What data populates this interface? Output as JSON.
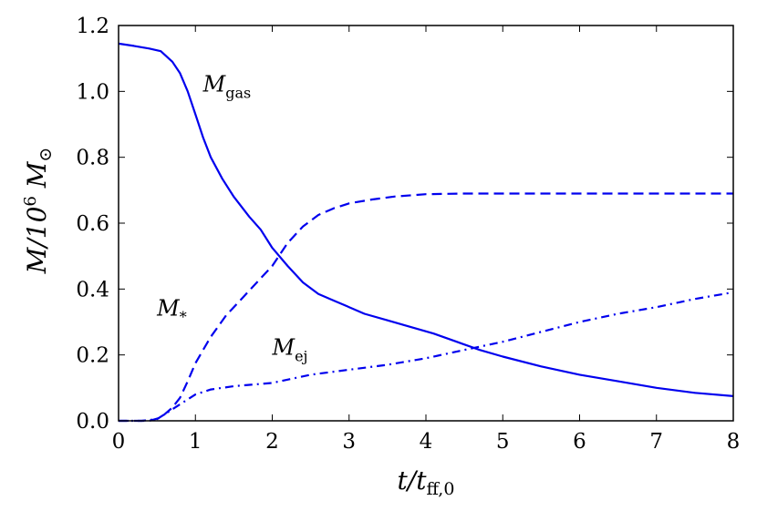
{
  "chart_data": {
    "type": "line",
    "xlim": [
      0,
      8
    ],
    "ylim": [
      0,
      1.2
    ],
    "x_ticks": [
      "0",
      "1",
      "2",
      "3",
      "4",
      "5",
      "6",
      "7",
      "8"
    ],
    "y_ticks": [
      "0.0",
      "0.2",
      "0.4",
      "0.6",
      "0.8",
      "1.0",
      "1.2"
    ],
    "xlabel": {
      "main": "t/t",
      "sub": "ff,0"
    },
    "ylabel": {
      "main": "M/10",
      "sup": "6",
      "tail": " M",
      "sub": "⊙"
    },
    "grid": false,
    "legend": "none",
    "color": "#0000ee",
    "series": [
      {
        "label_main": "M",
        "label_sub": "gas",
        "style": "solid",
        "x": [
          0,
          0.2,
          0.4,
          0.55,
          0.7,
          0.8,
          0.9,
          1.0,
          1.1,
          1.2,
          1.35,
          1.5,
          1.7,
          1.85,
          2.0,
          2.2,
          2.4,
          2.6,
          2.8,
          3.0,
          3.2,
          3.5,
          3.8,
          4.1,
          4.4,
          4.7,
          5.0,
          5.5,
          6.0,
          6.5,
          7.0,
          7.5,
          8.0
        ],
        "y": [
          1.145,
          1.138,
          1.13,
          1.122,
          1.09,
          1.055,
          1.0,
          0.93,
          0.86,
          0.8,
          0.735,
          0.68,
          0.62,
          0.58,
          0.525,
          0.47,
          0.42,
          0.385,
          0.365,
          0.345,
          0.325,
          0.305,
          0.285,
          0.265,
          0.24,
          0.215,
          0.195,
          0.165,
          0.14,
          0.12,
          0.1,
          0.085,
          0.075
        ]
      },
      {
        "label_main": "M",
        "label_sub": "*",
        "style": "dashed",
        "x": [
          0,
          0.4,
          0.55,
          0.7,
          0.8,
          0.9,
          1.0,
          1.1,
          1.2,
          1.4,
          1.6,
          1.8,
          2.0,
          2.2,
          2.4,
          2.6,
          2.8,
          3.0,
          3.3,
          3.6,
          4.0,
          4.5,
          5.0,
          6.0,
          7.0,
          8.0
        ],
        "y": [
          0.0,
          0.0,
          0.01,
          0.04,
          0.07,
          0.12,
          0.175,
          0.215,
          0.255,
          0.32,
          0.37,
          0.42,
          0.47,
          0.54,
          0.59,
          0.625,
          0.645,
          0.66,
          0.672,
          0.681,
          0.688,
          0.69,
          0.69,
          0.69,
          0.69,
          0.69
        ]
      },
      {
        "label_main": "M",
        "label_sub": "ej",
        "style": "dashdot",
        "x": [
          0,
          0.3,
          0.5,
          0.6,
          0.7,
          0.8,
          0.9,
          1.0,
          1.2,
          1.5,
          2.0,
          2.5,
          3.0,
          3.5,
          4.0,
          4.5,
          5.0,
          5.5,
          6.0,
          6.5,
          7.0,
          7.5,
          8.0
        ],
        "y": [
          0.0,
          0.0,
          0.005,
          0.02,
          0.035,
          0.05,
          0.065,
          0.08,
          0.095,
          0.105,
          0.115,
          0.14,
          0.155,
          0.17,
          0.19,
          0.215,
          0.24,
          0.27,
          0.3,
          0.325,
          0.345,
          0.37,
          0.39
        ]
      }
    ],
    "annotations": [
      {
        "series": 0,
        "x": 1.1,
        "y": 1.0
      },
      {
        "series": 1,
        "x": 0.5,
        "y": 0.32
      },
      {
        "series": 2,
        "x": 2.0,
        "y": 0.2
      }
    ]
  }
}
